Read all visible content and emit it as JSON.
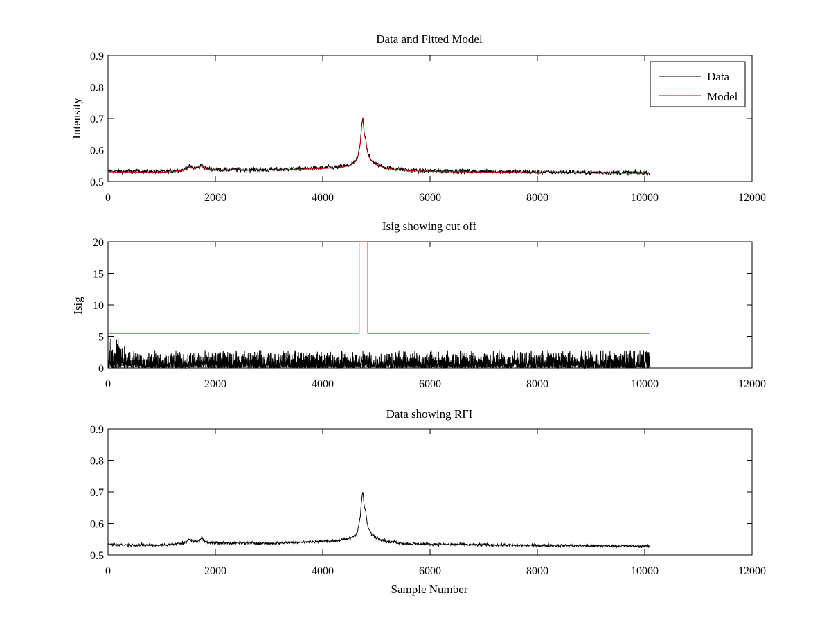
{
  "colors": {
    "data": "#000000",
    "model": "#cc0000",
    "axes": "#000000",
    "background": "#ffffff"
  },
  "chart_data": [
    {
      "type": "line",
      "title": "Data and Fitted Model",
      "xlabel": "",
      "ylabel": "Intensity",
      "xlim": [
        0,
        12000
      ],
      "ylim": [
        0.5,
        0.9
      ],
      "xticks": [
        0,
        2000,
        4000,
        6000,
        8000,
        10000,
        12000
      ],
      "xtick_labels": [
        "0",
        "2000",
        "4000",
        "6000",
        "8000",
        "10000",
        "12000"
      ],
      "yticks": [
        0.5,
        0.6,
        0.7,
        0.8,
        0.9
      ],
      "ytick_labels": [
        "0.5",
        "0.6",
        "0.7",
        "0.8",
        "0.9"
      ],
      "grid": false,
      "legend": {
        "placement": "top-right",
        "entries": [
          "Data",
          "Model"
        ]
      },
      "series": [
        {
          "name": "Data",
          "color": "#000000",
          "noise": 0.006,
          "x": [
            0,
            300,
            1000,
            1400,
            1500,
            1600,
            1700,
            1750,
            1800,
            2000,
            3000,
            4000,
            4300,
            4500,
            4600,
            4650,
            4700,
            4730,
            4750,
            4780,
            4800,
            4820,
            4850,
            4900,
            5000,
            5200,
            5600,
            6000,
            8000,
            10100
          ],
          "y": [
            0.533,
            0.532,
            0.531,
            0.537,
            0.548,
            0.543,
            0.545,
            0.555,
            0.542,
            0.538,
            0.537,
            0.543,
            0.546,
            0.552,
            0.562,
            0.575,
            0.62,
            0.685,
            0.7,
            0.645,
            0.642,
            0.61,
            0.585,
            0.568,
            0.555,
            0.543,
            0.536,
            0.534,
            0.53,
            0.528
          ]
        },
        {
          "name": "Model",
          "color": "#cc0000",
          "noise": 0,
          "x": [
            0,
            300,
            1000,
            1400,
            1500,
            1600,
            1700,
            1750,
            1800,
            2000,
            3000,
            4000,
            4300,
            4500,
            4600,
            4650,
            4700,
            4730,
            4750,
            4780,
            4800,
            4820,
            4850,
            4900,
            5000,
            5200,
            5600,
            6000,
            8000,
            10100
          ],
          "y": [
            0.531,
            0.529,
            0.529,
            0.535,
            0.546,
            0.541,
            0.544,
            0.553,
            0.54,
            0.537,
            0.536,
            0.541,
            0.544,
            0.55,
            0.56,
            0.573,
            0.618,
            0.683,
            0.705,
            0.643,
            0.64,
            0.608,
            0.583,
            0.566,
            0.553,
            0.541,
            0.534,
            0.532,
            0.528,
            0.526
          ]
        }
      ]
    },
    {
      "type": "line",
      "title": "Isig showing cut off",
      "xlabel": "",
      "ylabel": "Isig",
      "xlim": [
        0,
        12000
      ],
      "ylim": [
        0,
        20
      ],
      "xticks": [
        0,
        2000,
        4000,
        6000,
        8000,
        10000,
        12000
      ],
      "xtick_labels": [
        "0",
        "2000",
        "4000",
        "6000",
        "8000",
        "10000",
        "12000"
      ],
      "yticks": [
        0,
        5,
        10,
        15,
        20
      ],
      "ytick_labels": [
        "0",
        "5",
        "10",
        "15",
        "20"
      ],
      "grid": false,
      "series": [
        {
          "color": "#000000",
          "style": "noise",
          "x_range": [
            0,
            10100
          ],
          "typical_max": 2.8,
          "peak_max": 5,
          "peak_region": [
            0,
            400
          ]
        },
        {
          "color": "#cc0000",
          "style": "step",
          "x": [
            0,
            4680,
            4680,
            4840,
            4840,
            10100
          ],
          "y": [
            5.5,
            5.5,
            20,
            20,
            5.5,
            5.5
          ]
        }
      ]
    },
    {
      "type": "line",
      "title": "Data showing RFI",
      "xlabel": "Sample Number",
      "ylabel": "",
      "xlim": [
        0,
        12000
      ],
      "ylim": [
        0.5,
        0.9
      ],
      "xticks": [
        0,
        2000,
        4000,
        6000,
        8000,
        10000,
        12000
      ],
      "xtick_labels": [
        "0",
        "2000",
        "4000",
        "6000",
        "8000",
        "10000",
        "12000"
      ],
      "yticks": [
        0.5,
        0.6,
        0.7,
        0.8,
        0.9
      ],
      "ytick_labels": [
        "0.5",
        "0.6",
        "0.7",
        "0.8",
        "0.9"
      ],
      "grid": false,
      "series": [
        {
          "color": "#000000",
          "noise": 0.004,
          "x": [
            0,
            300,
            1000,
            1400,
            1500,
            1600,
            1700,
            1750,
            1800,
            2000,
            3000,
            4000,
            4300,
            4500,
            4600,
            4650,
            4700,
            4730,
            4750,
            4780,
            4800,
            4820,
            4850,
            4900,
            5000,
            5200,
            5600,
            6000,
            8000,
            10100
          ],
          "y": [
            0.533,
            0.532,
            0.531,
            0.537,
            0.548,
            0.543,
            0.545,
            0.555,
            0.542,
            0.538,
            0.537,
            0.543,
            0.546,
            0.552,
            0.562,
            0.575,
            0.62,
            0.685,
            0.7,
            0.645,
            0.642,
            0.61,
            0.585,
            0.568,
            0.555,
            0.543,
            0.536,
            0.534,
            0.53,
            0.528
          ]
        }
      ]
    }
  ]
}
